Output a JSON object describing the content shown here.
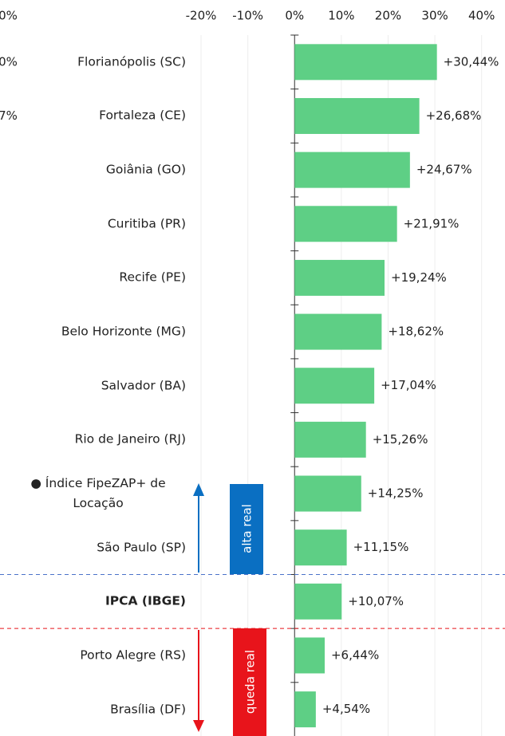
{
  "chart_data": {
    "type": "barh",
    "categories": [
      "Florianópolis (SC)",
      "Fortaleza (CE)",
      "Goiânia (GO)",
      "Curitiba (PR)",
      "Recife (PE)",
      "Belo Horizonte (MG)",
      "Salvador (BA)",
      "Rio de Janeiro (RJ)",
      "● Índice FipeZAP+ de Locação",
      "São Paulo (SP)",
      "IPCA (IBGE)",
      "Porto Alegre (RS)",
      "Brasília (DF)"
    ],
    "values": [
      30.44,
      26.68,
      24.67,
      21.91,
      19.24,
      18.62,
      17.04,
      15.26,
      14.25,
      11.15,
      10.07,
      6.44,
      4.54
    ],
    "value_labels": [
      "+30,44%",
      "+26,68%",
      "+24,67%",
      "+21,91%",
      "+19,24%",
      "+18,62%",
      "+17,04%",
      "+15,26%",
      "+14,25%",
      "+11,15%",
      "+10,07%",
      "+6,44%",
      "+4,54%"
    ],
    "color": "#5ecf85",
    "bold_categories": [
      10
    ],
    "xlim": [
      -63,
      45
    ],
    "xticks": [
      {
        "value": -20,
        "label": "-20%"
      },
      {
        "value": -10,
        "label": "-10%"
      },
      {
        "value": 0,
        "label": "0%"
      },
      {
        "value": 10,
        "label": "10%"
      },
      {
        "value": 20,
        "label": "20%"
      },
      {
        "value": 30,
        "label": "30%"
      },
      {
        "value": 40,
        "label": "40%"
      }
    ],
    "grid": true,
    "annotations": {
      "above": "alta real",
      "below": "queda real"
    },
    "cropped_fragments": [
      "0%",
      "0%",
      "7%"
    ]
  }
}
